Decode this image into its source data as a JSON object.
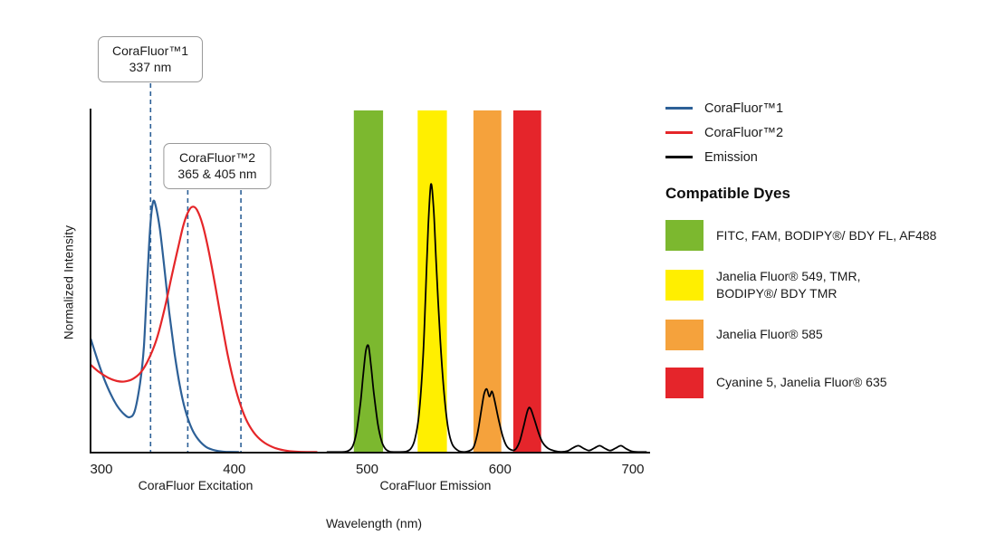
{
  "chart_data": {
    "type": "line",
    "xlabel": "Wavelength (nm)",
    "ylabel": "Normalized Intensity",
    "x_ticks": [
      300,
      400,
      500,
      600,
      700
    ],
    "x_range_nm": [
      292,
      713
    ],
    "y_range": [
      0,
      1
    ],
    "grid": false,
    "section_labels": [
      {
        "label": "CoraFluor Excitation"
      },
      {
        "label": "CoraFluor Emission"
      }
    ],
    "callouts": [
      {
        "title": "CoraFluor™1",
        "subtitle": "337 nm",
        "lines_nm": [
          337
        ]
      },
      {
        "title": "CoraFluor™2",
        "subtitle": "365 & 405 nm",
        "lines_nm": [
          365,
          405
        ]
      }
    ],
    "dashed_line_color": "#2d6097",
    "bands": [
      {
        "from_nm": 490,
        "to_nm": 512,
        "color": "#7cb82f"
      },
      {
        "from_nm": 538,
        "to_nm": 560,
        "color": "#ffef00"
      },
      {
        "from_nm": 580,
        "to_nm": 601,
        "color": "#f5a23c"
      },
      {
        "from_nm": 610,
        "to_nm": 631,
        "color": "#e5252b"
      }
    ],
    "series": [
      {
        "name": "CoraFluor™1",
        "kind": "excitation",
        "color": "#2d6097",
        "points": [
          [
            292,
            0.33
          ],
          [
            297,
            0.27
          ],
          [
            302,
            0.215
          ],
          [
            307,
            0.17
          ],
          [
            312,
            0.135
          ],
          [
            317,
            0.112
          ],
          [
            321,
            0.103
          ],
          [
            325,
            0.12
          ],
          [
            329,
            0.2
          ],
          [
            332,
            0.31
          ],
          [
            335,
            0.54
          ],
          [
            337,
            0.67
          ],
          [
            339,
            0.73
          ],
          [
            341,
            0.715
          ],
          [
            344,
            0.65
          ],
          [
            347,
            0.55
          ],
          [
            351,
            0.41
          ],
          [
            355,
            0.29
          ],
          [
            359,
            0.195
          ],
          [
            363,
            0.125
          ],
          [
            368,
            0.07
          ],
          [
            373,
            0.038
          ],
          [
            379,
            0.016
          ],
          [
            386,
            0.006
          ],
          [
            394,
            0.002
          ],
          [
            403,
            0
          ]
        ]
      },
      {
        "name": "CoraFluor™2",
        "kind": "excitation",
        "color": "#e52629",
        "points": [
          [
            292,
            0.255
          ],
          [
            298,
            0.235
          ],
          [
            305,
            0.218
          ],
          [
            312,
            0.208
          ],
          [
            318,
            0.207
          ],
          [
            324,
            0.215
          ],
          [
            330,
            0.235
          ],
          [
            336,
            0.275
          ],
          [
            342,
            0.335
          ],
          [
            348,
            0.425
          ],
          [
            353,
            0.515
          ],
          [
            358,
            0.6
          ],
          [
            362,
            0.665
          ],
          [
            366,
            0.705
          ],
          [
            369,
            0.715
          ],
          [
            372,
            0.705
          ],
          [
            376,
            0.665
          ],
          [
            380,
            0.6
          ],
          [
            385,
            0.5
          ],
          [
            390,
            0.39
          ],
          [
            395,
            0.285
          ],
          [
            400,
            0.2
          ],
          [
            405,
            0.135
          ],
          [
            410,
            0.088
          ],
          [
            416,
            0.052
          ],
          [
            423,
            0.028
          ],
          [
            431,
            0.013
          ],
          [
            440,
            0.005
          ],
          [
            450,
            0.002
          ],
          [
            462,
            0
          ]
        ]
      },
      {
        "name": "Emission",
        "kind": "emission",
        "color": "#000000",
        "points": [
          [
            470,
            0
          ],
          [
            480,
            0.001
          ],
          [
            485,
            0.004
          ],
          [
            489,
            0.018
          ],
          [
            492,
            0.06
          ],
          [
            495,
            0.145
          ],
          [
            497,
            0.225
          ],
          [
            499,
            0.295
          ],
          [
            501,
            0.31
          ],
          [
            503,
            0.25
          ],
          [
            505,
            0.175
          ],
          [
            508,
            0.085
          ],
          [
            511,
            0.032
          ],
          [
            514,
            0.01
          ],
          [
            518,
            0.002
          ],
          [
            523,
            0.001
          ],
          [
            529,
            0.003
          ],
          [
            533,
            0.012
          ],
          [
            536,
            0.04
          ],
          [
            539,
            0.11
          ],
          [
            542,
            0.27
          ],
          [
            544,
            0.46
          ],
          [
            546,
            0.66
          ],
          [
            548,
            0.78
          ],
          [
            550,
            0.71
          ],
          [
            552,
            0.55
          ],
          [
            555,
            0.33
          ],
          [
            558,
            0.17
          ],
          [
            561,
            0.07
          ],
          [
            564,
            0.025
          ],
          [
            568,
            0.007
          ],
          [
            572,
            0.002
          ],
          [
            576,
            0.004
          ],
          [
            580,
            0.015
          ],
          [
            583,
            0.055
          ],
          [
            586,
            0.125
          ],
          [
            588,
            0.17
          ],
          [
            590,
            0.185
          ],
          [
            592,
            0.163
          ],
          [
            594,
            0.178
          ],
          [
            596,
            0.15
          ],
          [
            599,
            0.095
          ],
          [
            602,
            0.048
          ],
          [
            605,
            0.019
          ],
          [
            609,
            0.007
          ],
          [
            612,
            0.011
          ],
          [
            615,
            0.035
          ],
          [
            618,
            0.08
          ],
          [
            621,
            0.125
          ],
          [
            623,
            0.128
          ],
          [
            626,
            0.095
          ],
          [
            629,
            0.058
          ],
          [
            632,
            0.03
          ],
          [
            636,
            0.013
          ],
          [
            641,
            0.005
          ],
          [
            646,
            0.002
          ],
          [
            651,
            0.005
          ],
          [
            655,
            0.014
          ],
          [
            659,
            0.02
          ],
          [
            663,
            0.012
          ],
          [
            667,
            0.006
          ],
          [
            671,
            0.013
          ],
          [
            675,
            0.02
          ],
          [
            679,
            0.012
          ],
          [
            683,
            0.006
          ],
          [
            687,
            0.013
          ],
          [
            691,
            0.02
          ],
          [
            695,
            0.011
          ],
          [
            699,
            0.004
          ],
          [
            704,
            0.001
          ],
          [
            710,
            0
          ]
        ]
      }
    ],
    "legend": {
      "series": [
        {
          "label": "CoraFluor™1",
          "color": "#2d6097"
        },
        {
          "label": "CoraFluor™2",
          "color": "#e52629"
        },
        {
          "label": "Emission",
          "color": "#000000"
        }
      ],
      "dyes_heading": "Compatible Dyes",
      "dyes": [
        {
          "color": "#7cb82f",
          "label": "FITC, FAM, BODIPY®/ BDY FL, AF488"
        },
        {
          "color": "#ffef00",
          "label": "Janelia Fluor® 549, TMR,\nBODIPY®/ BDY TMR"
        },
        {
          "color": "#f5a23c",
          "label": "Janelia Fluor® 585"
        },
        {
          "color": "#e5252b",
          "label": "Cyanine 5, Janelia Fluor® 635"
        }
      ]
    }
  }
}
